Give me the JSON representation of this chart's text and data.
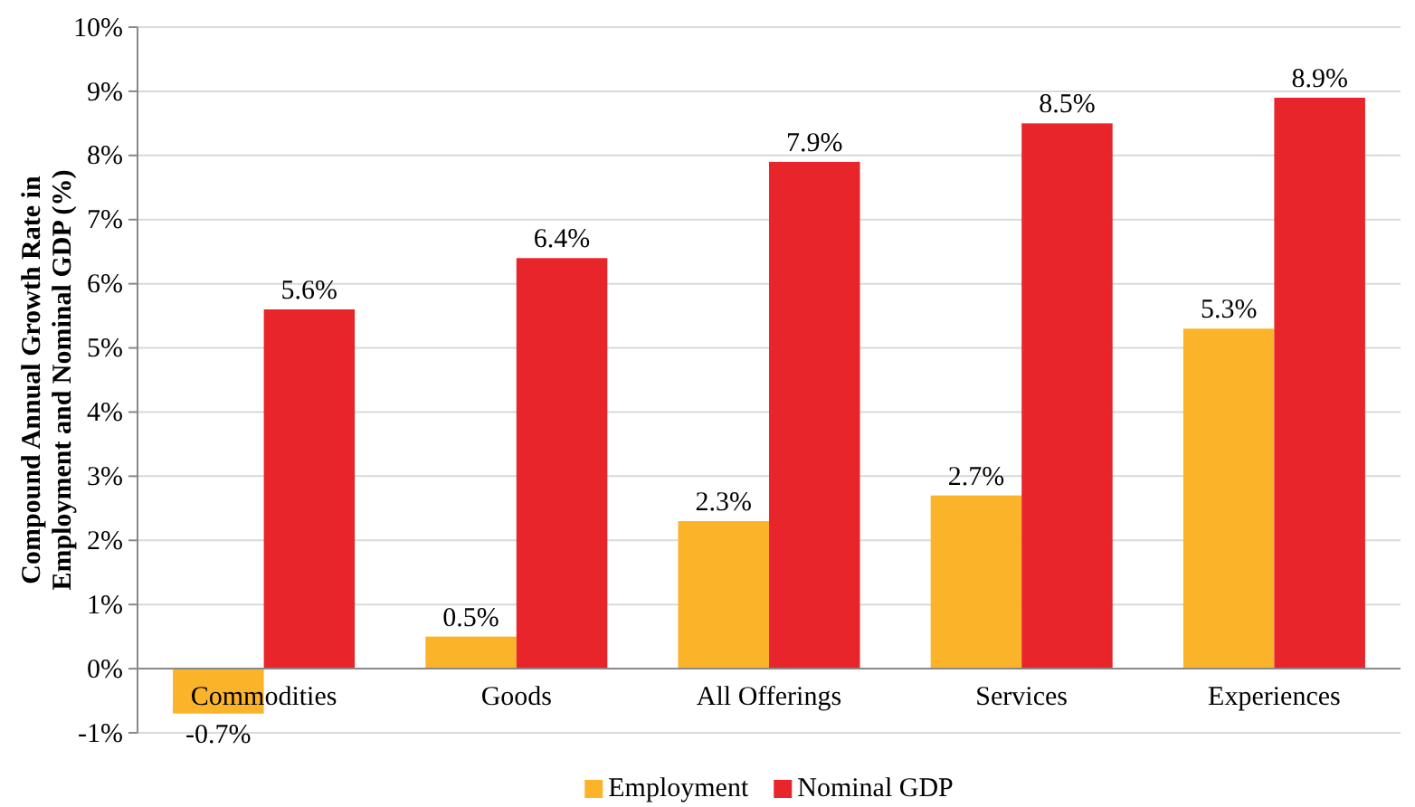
{
  "chart_data": {
    "type": "bar",
    "ylabel": "Compound Annual Growth Rate in Employment and Nominal GDP (%)",
    "categories": [
      "Commodities",
      "Goods",
      "All Offerings",
      "Services",
      "Experiences"
    ],
    "series": [
      {
        "name": "Employment",
        "color": "#fbb42a",
        "values": [
          -0.7,
          0.5,
          2.3,
          2.7,
          5.3
        ],
        "value_labels": [
          "-0.7%",
          "0.5%",
          "2.3%",
          "2.7%",
          "5.3%"
        ]
      },
      {
        "name": "Nominal GDP",
        "color": "#e8252a",
        "values": [
          5.6,
          6.4,
          7.9,
          8.5,
          8.9
        ],
        "value_labels": [
          "5.6%",
          "6.4%",
          "7.9%",
          "8.5%",
          "8.9%"
        ]
      }
    ],
    "ylim": [
      -1,
      10
    ],
    "yticks": [
      {
        "value": -1,
        "label": "-1%"
      },
      {
        "value": 0,
        "label": "0%"
      },
      {
        "value": 1,
        "label": "1%"
      },
      {
        "value": 2,
        "label": "2%"
      },
      {
        "value": 3,
        "label": "3%"
      },
      {
        "value": 4,
        "label": "4%"
      },
      {
        "value": 5,
        "label": "5%"
      },
      {
        "value": 6,
        "label": "6%"
      },
      {
        "value": 7,
        "label": "7%"
      },
      {
        "value": 8,
        "label": "8%"
      },
      {
        "value": 9,
        "label": "9%"
      },
      {
        "value": 10,
        "label": "10%"
      }
    ],
    "grid": "y",
    "legend": "bottom"
  }
}
